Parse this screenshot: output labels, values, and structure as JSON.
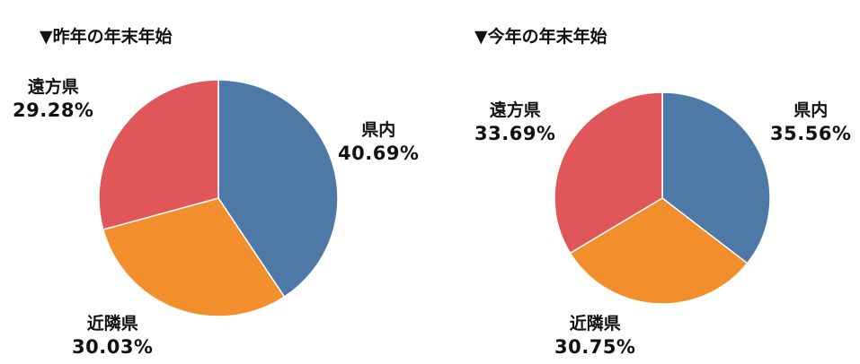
{
  "chart_data": [
    {
      "type": "pie",
      "title": "▼昨年の年末年始",
      "slices": [
        {
          "label": "県内",
          "value": 40.69,
          "display": "40.69%",
          "color": "#4e79a7"
        },
        {
          "label": "近隣県",
          "value": 30.03,
          "display": "30.03%",
          "color": "#f28e2b"
        },
        {
          "label": "遠方県",
          "value": 29.28,
          "display": "29.28%",
          "color": "#e15759"
        }
      ]
    },
    {
      "type": "pie",
      "title": "▼今年の年末年始",
      "slices": [
        {
          "label": "県内",
          "value": 35.56,
          "display": "35.56%",
          "color": "#4e79a7"
        },
        {
          "label": "近隣県",
          "value": 30.75,
          "display": "30.75%",
          "color": "#f28e2b"
        },
        {
          "label": "遠方県",
          "value": 33.69,
          "display": "33.69%",
          "color": "#e15759"
        }
      ]
    }
  ]
}
